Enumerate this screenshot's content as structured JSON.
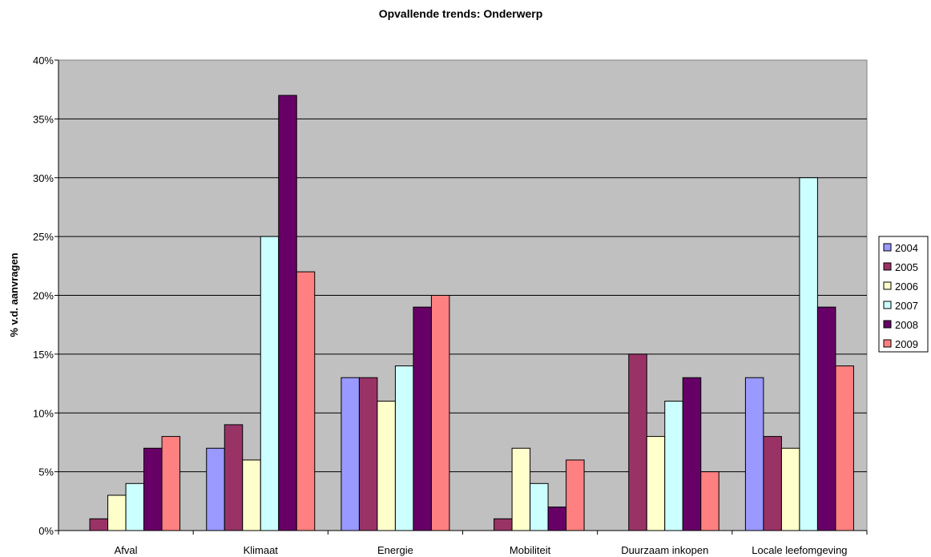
{
  "chart_data": {
    "type": "bar",
    "title": "Opvallende trends: Onderwerp",
    "xlabel": "",
    "ylabel": "% v.d. aanvragen",
    "ylim": [
      0,
      40
    ],
    "y_ticks": [
      "0%",
      "5%",
      "10%",
      "15%",
      "20%",
      "25%",
      "30%",
      "35%",
      "40%"
    ],
    "grid": true,
    "legend_position": "right",
    "categories": [
      "Afval",
      "Klimaat",
      "Energie",
      "Mobiliteit",
      "Duurzaam inkopen",
      "Locale leefomgeving"
    ],
    "series": [
      {
        "name": "2004",
        "color": "#9999FF",
        "values": [
          0,
          7,
          13,
          0,
          0,
          13
        ]
      },
      {
        "name": "2005",
        "color": "#993366",
        "values": [
          1,
          9,
          13,
          1,
          15,
          8
        ]
      },
      {
        "name": "2006",
        "color": "#FFFFCC",
        "values": [
          3,
          6,
          11,
          7,
          8,
          7
        ]
      },
      {
        "name": "2007",
        "color": "#CCFFFF",
        "values": [
          4,
          25,
          14,
          4,
          11,
          30
        ]
      },
      {
        "name": "2008",
        "color": "#660066",
        "values": [
          7,
          37,
          19,
          2,
          13,
          19
        ]
      },
      {
        "name": "2009",
        "color": "#FF8080",
        "values": [
          8,
          22,
          20,
          6,
          5,
          14
        ]
      }
    ]
  }
}
